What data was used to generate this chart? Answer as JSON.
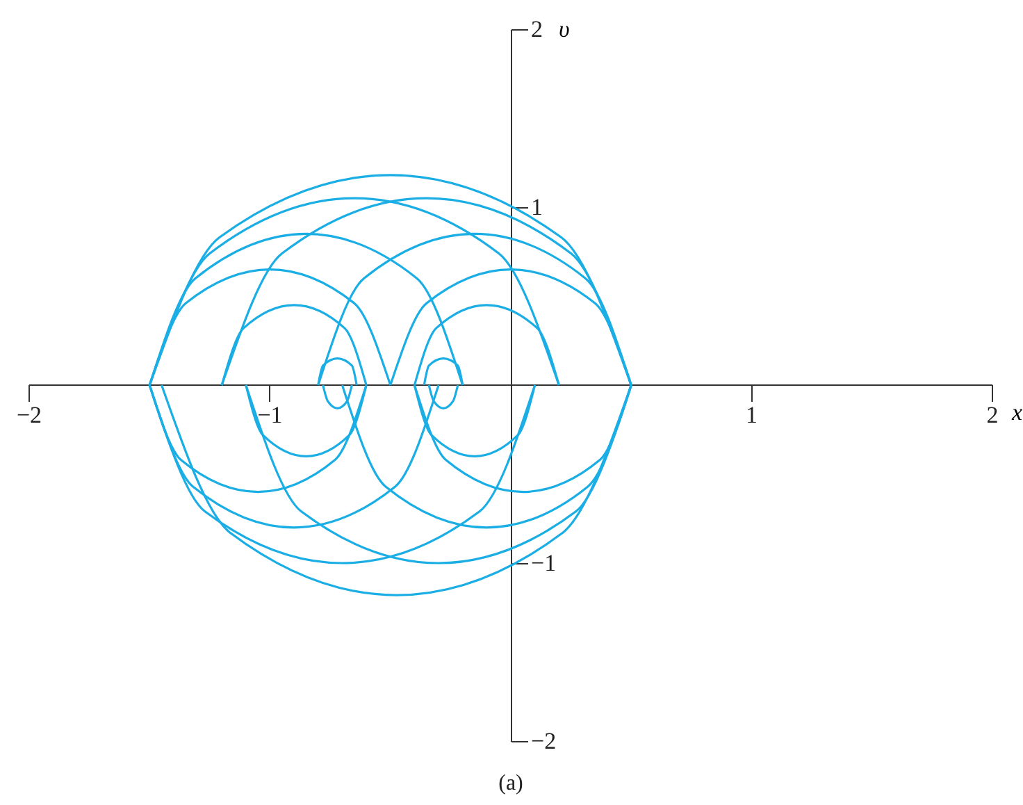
{
  "chart_data": {
    "type": "line",
    "xlabel": "x",
    "ylabel": "υ",
    "annotations": [
      "(a)"
    ],
    "xlim": [
      -2,
      2
    ],
    "ylim": [
      -2,
      2
    ],
    "xticks": [
      -2,
      -1,
      1,
      2
    ],
    "yticks": [
      -2,
      -1,
      1,
      2
    ],
    "grid": false,
    "marker": "none",
    "series": [
      {
        "color": "#1aaee5",
        "x": [
          -1.5,
          -1.21,
          -0.5,
          0.21,
          0.5
        ],
        "values": [
          0,
          0.83,
          1.18,
          0.83,
          0
        ]
      },
      {
        "color": "#1aaee5",
        "x": [
          -1.45,
          -1.165,
          -0.475,
          0.215,
          0.5
        ],
        "values": [
          0,
          -0.83,
          -1.18,
          -0.83,
          0
        ]
      },
      {
        "color": "#1aaee5",
        "x": [
          -1.5,
          -1.31,
          -0.85,
          -0.39,
          -0.2
        ],
        "values": [
          0,
          0.6,
          0.85,
          0.6,
          0
        ]
      },
      {
        "color": "#1aaee5",
        "x": [
          -1.5,
          -1.32,
          -0.9,
          -0.48,
          -0.3
        ],
        "values": [
          0,
          -0.57,
          -0.8,
          -0.57,
          0
        ]
      },
      {
        "color": "#1aaee5",
        "x": [
          -1.5,
          -1.35,
          -1,
          -0.65,
          -0.5
        ],
        "values": [
          0,
          0.46,
          0.65,
          0.46,
          0
        ]
      },
      {
        "color": "#1aaee5",
        "x": [
          -1.5,
          -1.37,
          -1.05,
          -0.73,
          -0.6
        ],
        "values": [
          0,
          -0.42,
          -0.6,
          -0.42,
          0
        ]
      },
      {
        "color": "#1aaee5",
        "x": [
          -1.2,
          -1.11,
          -0.9,
          -0.69,
          -0.6
        ],
        "values": [
          0,
          0.32,
          0.45,
          0.32,
          0
        ]
      },
      {
        "color": "#1aaee5",
        "x": [
          -1.1,
          -1.03,
          -0.85,
          -0.67,
          -0.6
        ],
        "values": [
          0,
          -0.28,
          -0.4,
          -0.28,
          0
        ]
      },
      {
        "color": "#1aaee5",
        "x": [
          -0.8,
          -0.61,
          -0.15,
          0.31,
          0.5
        ],
        "values": [
          0,
          0.6,
          0.85,
          0.6,
          0
        ]
      },
      {
        "color": "#1aaee5",
        "x": [
          -0.7,
          -0.52,
          -0.1,
          0.32,
          0.5
        ],
        "values": [
          0,
          -0.57,
          -0.8,
          -0.57,
          0
        ]
      },
      {
        "color": "#1aaee5",
        "x": [
          -0.5,
          -0.35,
          0,
          0.35,
          0.5
        ],
        "values": [
          0,
          0.46,
          0.65,
          0.46,
          0
        ]
      },
      {
        "color": "#1aaee5",
        "x": [
          -0.4,
          -0.27,
          0.05,
          0.37,
          0.5
        ],
        "values": [
          0,
          -0.42,
          -0.6,
          -0.42,
          0
        ]
      },
      {
        "color": "#1aaee5",
        "x": [
          -0.4,
          -0.31,
          -0.1,
          0.11,
          0.2
        ],
        "values": [
          0,
          0.32,
          0.45,
          0.32,
          0
        ]
      },
      {
        "color": "#1aaee5",
        "x": [
          -0.4,
          -0.33,
          -0.15,
          0.03,
          0.1
        ],
        "values": [
          0,
          -0.28,
          -0.4,
          -0.28,
          0
        ]
      },
      {
        "color": "#1aaee5",
        "x": [
          -1.5,
          -1.25,
          -0.65,
          -0.05,
          0.2
        ],
        "values": [
          0,
          0.74,
          1.05,
          0.74,
          0
        ]
      },
      {
        "color": "#1aaee5",
        "x": [
          -1.5,
          -1.27,
          -0.7,
          -0.13,
          0.1
        ],
        "values": [
          0,
          -0.71,
          -1,
          -0.71,
          0
        ]
      },
      {
        "color": "#1aaee5",
        "x": [
          -1.2,
          -0.95,
          -0.35,
          0.25,
          0.5
        ],
        "values": [
          0,
          0.74,
          1.05,
          0.74,
          0
        ]
      },
      {
        "color": "#1aaee5",
        "x": [
          -1.1,
          -0.87,
          -0.3,
          0.27,
          0.5
        ],
        "values": [
          0,
          -0.71,
          -1,
          -0.71,
          0
        ]
      },
      {
        "color": "#1aaee5",
        "x": [
          -0.8,
          -0.78,
          -0.72,
          -0.66,
          -0.64
        ],
        "values": [
          0,
          0.11,
          0.15,
          0.11,
          0
        ]
      },
      {
        "color": "#1aaee5",
        "x": [
          -0.78,
          -0.76,
          -0.72,
          -0.68,
          -0.66
        ],
        "values": [
          0,
          -0.09,
          -0.13,
          -0.09,
          0
        ]
      },
      {
        "color": "#1aaee5",
        "x": [
          -0.36,
          -0.34,
          -0.28,
          -0.22,
          -0.2
        ],
        "values": [
          0,
          0.11,
          0.15,
          0.11,
          0
        ]
      },
      {
        "color": "#1aaee5",
        "x": [
          -0.34,
          -0.32,
          -0.28,
          -0.24,
          -0.22
        ],
        "values": [
          0,
          -0.09,
          -0.13,
          -0.09,
          0
        ]
      }
    ]
  }
}
